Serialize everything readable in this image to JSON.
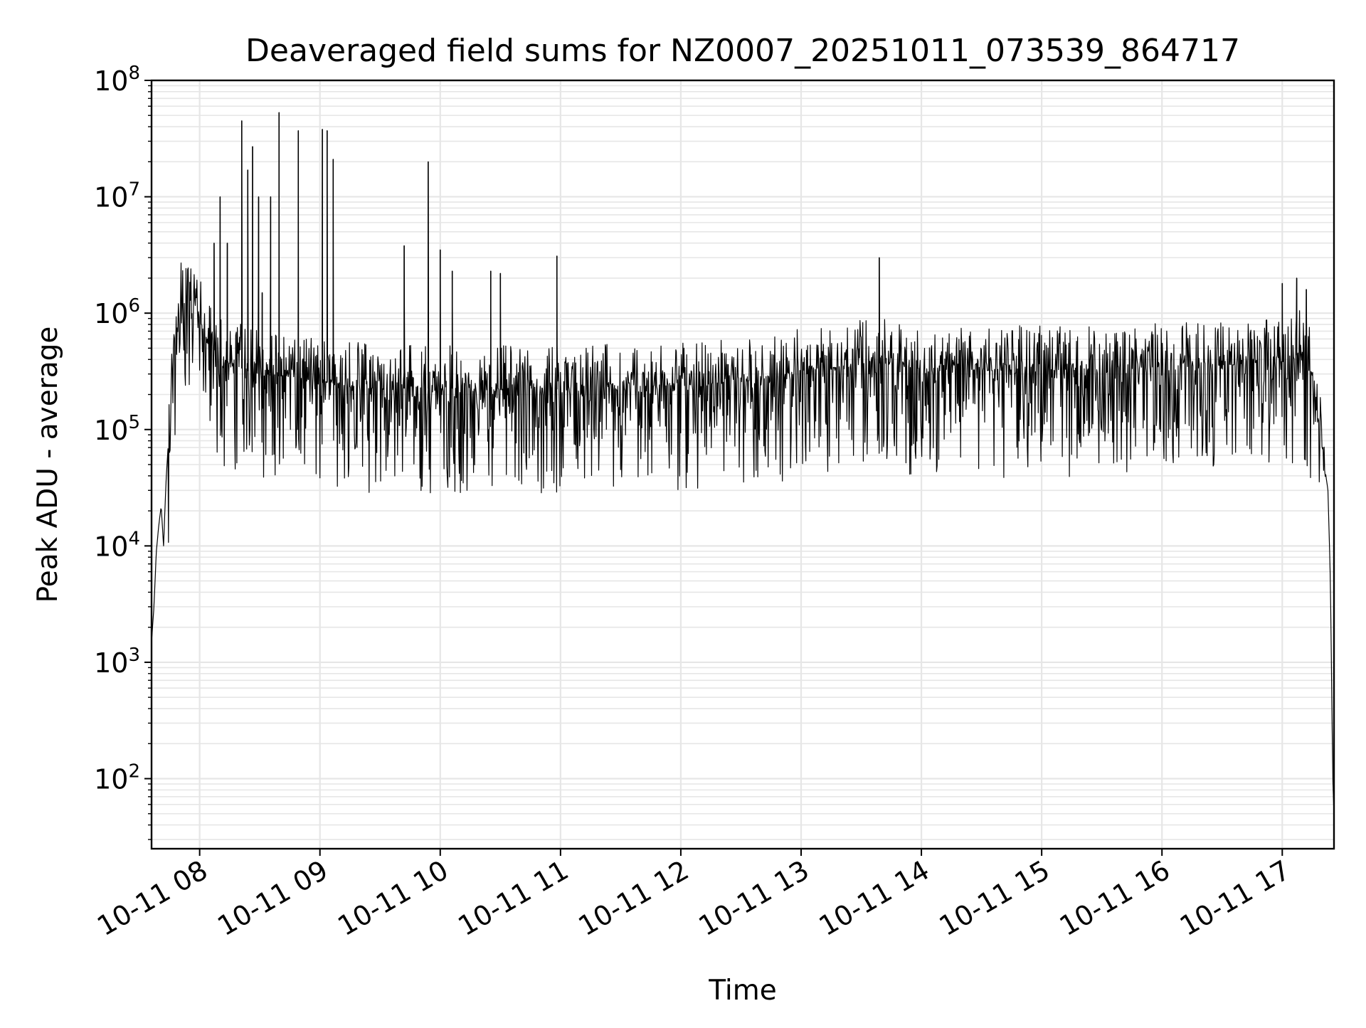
{
  "chart_data": {
    "type": "line",
    "title": "Deaveraged field sums for NZ0007_20251011_073539_864717",
    "xlabel": "Time",
    "ylabel": "Peak ADU - average",
    "yscale": "log",
    "ylim": [
      25,
      100000000
    ],
    "xlim_hours": [
      7.6,
      17.43
    ],
    "grid": true,
    "line_color": "#000000",
    "grid_color": "#e6e6e6",
    "x_ticks": [
      {
        "hour": 8,
        "label": "10-11 08"
      },
      {
        "hour": 9,
        "label": "10-11 09"
      },
      {
        "hour": 10,
        "label": "10-11 10"
      },
      {
        "hour": 11,
        "label": "10-11 11"
      },
      {
        "hour": 12,
        "label": "10-11 12"
      },
      {
        "hour": 13,
        "label": "10-11 13"
      },
      {
        "hour": 14,
        "label": "10-11 14"
      },
      {
        "hour": 15,
        "label": "10-11 15"
      },
      {
        "hour": 16,
        "label": "10-11 16"
      },
      {
        "hour": 17,
        "label": "10-11 17"
      }
    ],
    "y_ticks": [
      {
        "exp": 2,
        "base": "10",
        "sup": "2"
      },
      {
        "exp": 3,
        "base": "10",
        "sup": "3"
      },
      {
        "exp": 4,
        "base": "10",
        "sup": "4"
      },
      {
        "exp": 5,
        "base": "10",
        "sup": "5"
      },
      {
        "exp": 6,
        "base": "10",
        "sup": "6"
      },
      {
        "exp": 7,
        "base": "10",
        "sup": "7"
      },
      {
        "exp": 8,
        "base": "10",
        "sup": "8"
      }
    ],
    "series": [
      {
        "name": "Peak ADU - average",
        "points": [
          [
            7.6,
            1500
          ],
          [
            7.62,
            3000
          ],
          [
            7.64,
            9000
          ],
          [
            7.66,
            15000
          ],
          [
            7.68,
            22000
          ],
          [
            7.7,
            10000
          ],
          [
            7.72,
            35000
          ],
          [
            7.75,
            120000
          ],
          [
            7.78,
            400000
          ],
          [
            7.8,
            900000
          ],
          [
            7.83,
            1200000
          ],
          [
            7.86,
            1100000
          ],
          [
            7.9,
            1500000
          ],
          [
            7.93,
            2200000
          ],
          [
            7.96,
            1200000
          ],
          [
            8.0,
            900000
          ],
          [
            8.05,
            600000
          ],
          [
            8.1,
            500000
          ],
          [
            8.15,
            450000
          ],
          [
            8.2,
            400000
          ],
          [
            8.3,
            350000
          ],
          [
            8.4,
            320000
          ],
          [
            8.5,
            300000
          ],
          [
            8.6,
            290000
          ],
          [
            8.8,
            280000
          ],
          [
            9.0,
            260000
          ],
          [
            9.2,
            240000
          ],
          [
            9.4,
            230000
          ],
          [
            9.6,
            220000
          ],
          [
            9.8,
            230000
          ],
          [
            10.0,
            220000
          ],
          [
            10.2,
            230000
          ],
          [
            10.4,
            220000
          ],
          [
            10.6,
            220000
          ],
          [
            10.8,
            230000
          ],
          [
            11.0,
            220000
          ],
          [
            11.3,
            230000
          ],
          [
            11.6,
            240000
          ],
          [
            12.0,
            240000
          ],
          [
            12.4,
            250000
          ],
          [
            12.8,
            280000
          ],
          [
            13.0,
            320000
          ],
          [
            13.3,
            340000
          ],
          [
            13.6,
            380000
          ],
          [
            14.0,
            330000
          ],
          [
            14.3,
            330000
          ],
          [
            14.6,
            320000
          ],
          [
            15.0,
            330000
          ],
          [
            15.3,
            320000
          ],
          [
            15.6,
            330000
          ],
          [
            16.0,
            340000
          ],
          [
            16.3,
            350000
          ],
          [
            16.6,
            360000
          ],
          [
            17.0,
            380000
          ],
          [
            17.15,
            450000
          ],
          [
            17.25,
            300000
          ],
          [
            17.3,
            120000
          ],
          [
            17.35,
            50000
          ],
          [
            17.38,
            30000
          ],
          [
            17.4,
            5000
          ],
          [
            17.42,
            100
          ],
          [
            17.43,
            50
          ]
        ]
      }
    ],
    "spikes": [
      {
        "hour": 8.12,
        "value": 4000000
      },
      {
        "hour": 8.17,
        "value": 10000000
      },
      {
        "hour": 8.23,
        "value": 4000000
      },
      {
        "hour": 8.35,
        "value": 45000000
      },
      {
        "hour": 8.4,
        "value": 17000000
      },
      {
        "hour": 8.44,
        "value": 27000000
      },
      {
        "hour": 8.49,
        "value": 10000000
      },
      {
        "hour": 8.52,
        "value": 1500000
      },
      {
        "hour": 8.59,
        "value": 10000000
      },
      {
        "hour": 8.66,
        "value": 53000000
      },
      {
        "hour": 8.82,
        "value": 37000000
      },
      {
        "hour": 9.02,
        "value": 38000000
      },
      {
        "hour": 9.06,
        "value": 37000000
      },
      {
        "hour": 9.11,
        "value": 21000000
      },
      {
        "hour": 9.7,
        "value": 3800000
      },
      {
        "hour": 9.9,
        "value": 20000000
      },
      {
        "hour": 10.0,
        "value": 3500000
      },
      {
        "hour": 10.1,
        "value": 2300000
      },
      {
        "hour": 10.42,
        "value": 2300000
      },
      {
        "hour": 10.5,
        "value": 2200000
      },
      {
        "hour": 10.97,
        "value": 3100000
      },
      {
        "hour": 13.65,
        "value": 3000000
      },
      {
        "hour": 17.0,
        "value": 1800000
      },
      {
        "hour": 17.12,
        "value": 2000000
      },
      {
        "hour": 17.2,
        "value": 1600000
      }
    ],
    "noise": {
      "low_factor": 0.12,
      "high_factor": 2.4,
      "density_per_hour": 220
    }
  }
}
